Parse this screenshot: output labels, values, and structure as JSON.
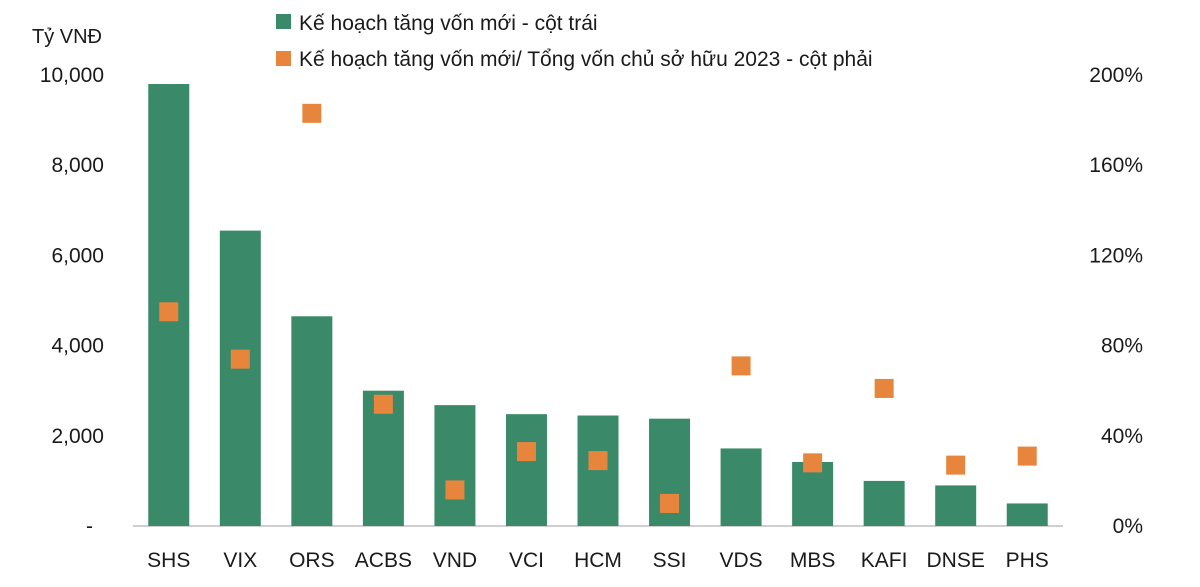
{
  "chart_data": {
    "type": "bar",
    "y_left_unit": "Tỷ VNĐ",
    "categories": [
      "SHS",
      "VIX",
      "ORS",
      "ACBS",
      "VND",
      "VCI",
      "HCM",
      "SSI",
      "VDS",
      "MBS",
      "KAFI",
      "DNSE",
      "PHS"
    ],
    "series": [
      {
        "name": "Kế hoạch tăng vốn mới - cột trái",
        "type": "bar",
        "axis": "left",
        "color": "#3a8a6a",
        "values": [
          9800,
          6550,
          4650,
          3000,
          2680,
          2480,
          2450,
          2380,
          1720,
          1420,
          1000,
          900,
          500
        ]
      },
      {
        "name": "Kế hoạch tăng vốn mới/ Tổng vốn chủ sở hữu 2023 - cột phải",
        "type": "scatter",
        "axis": "right",
        "color": "#e8853d",
        "values": [
          95,
          74,
          183,
          54,
          16,
          33,
          29,
          10,
          71,
          28,
          61,
          27,
          31
        ]
      }
    ],
    "y_left": {
      "min": 0,
      "max": 10000,
      "ticks": [
        0,
        2000,
        4000,
        6000,
        8000,
        10000
      ],
      "tick_labels": [
        "-",
        "2,000",
        "4,000",
        "6,000",
        "8,000",
        "10,000"
      ]
    },
    "y_right": {
      "min": 0,
      "max": 200,
      "ticks": [
        0,
        40,
        80,
        120,
        160,
        200
      ],
      "tick_labels": [
        "0%",
        "40%",
        "80%",
        "120%",
        "160%",
        "200%"
      ]
    },
    "grid": false,
    "legend_position": "top"
  }
}
